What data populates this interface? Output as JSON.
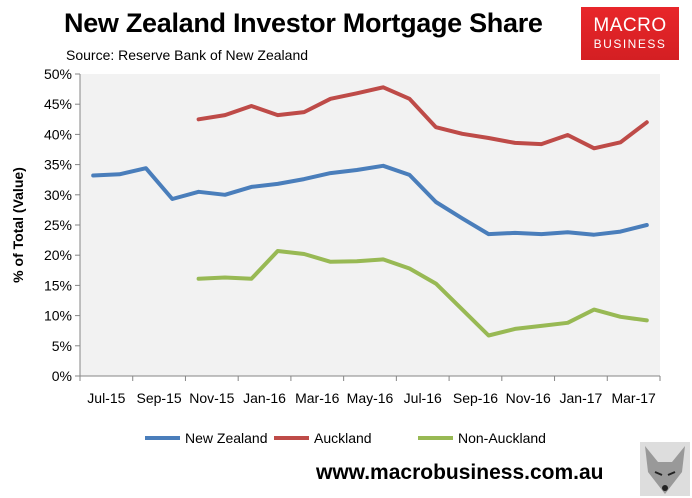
{
  "title": "New Zealand Investor Mortgage Share",
  "subtitle": "Source: Reserve Bank of New Zealand",
  "logo": {
    "line1": "MACRO",
    "line2": "BUSINESS"
  },
  "website": "www.macrobusiness.com.au",
  "chart_data": {
    "type": "line",
    "title": "New Zealand Investor Mortgage Share",
    "ylabel": "% of Total (Value)",
    "xlabel": "",
    "ylim": [
      0,
      50
    ],
    "yticks": [
      "0%",
      "5%",
      "10%",
      "15%",
      "20%",
      "25%",
      "30%",
      "35%",
      "40%",
      "45%",
      "50%"
    ],
    "xtick_labels": [
      "Jul-15",
      "Sep-15",
      "Nov-15",
      "Jan-16",
      "Mar-16",
      "May-16",
      "Jul-16",
      "Sep-16",
      "Nov-16",
      "Jan-17",
      "Mar-17"
    ],
    "x": [
      "Jul-15",
      "Aug-15",
      "Sep-15",
      "Oct-15",
      "Nov-15",
      "Dec-15",
      "Jan-16",
      "Feb-16",
      "Mar-16",
      "Apr-16",
      "May-16",
      "Jun-16",
      "Jul-16",
      "Aug-16",
      "Sep-16",
      "Oct-16",
      "Nov-16",
      "Dec-16",
      "Jan-17",
      "Feb-17",
      "Mar-17",
      "Apr-17"
    ],
    "grid": false,
    "legend": "bottom",
    "series": [
      {
        "name": "New Zealand",
        "color": "#4a7ebb",
        "values": [
          33.2,
          33.4,
          34.4,
          29.3,
          30.5,
          30.0,
          31.3,
          31.8,
          32.6,
          33.6,
          34.1,
          34.8,
          33.3,
          28.8,
          26.1,
          23.5,
          23.7,
          23.5,
          23.8,
          23.4,
          23.9,
          25.0
        ]
      },
      {
        "name": "Auckland",
        "color": "#be4b48",
        "values": [
          null,
          null,
          null,
          null,
          42.5,
          43.2,
          44.7,
          43.2,
          43.7,
          45.9,
          46.8,
          47.8,
          45.9,
          41.2,
          40.1,
          39.4,
          38.6,
          38.4,
          39.9,
          37.7,
          38.7,
          42.0
        ]
      },
      {
        "name": "Non-Auckland",
        "color": "#98b954",
        "values": [
          null,
          null,
          null,
          null,
          16.1,
          16.3,
          16.1,
          20.7,
          20.2,
          18.9,
          19.0,
          19.3,
          17.8,
          15.3,
          11.0,
          6.7,
          7.8,
          8.3,
          8.8,
          11.0,
          9.8,
          9.2
        ]
      }
    ]
  }
}
